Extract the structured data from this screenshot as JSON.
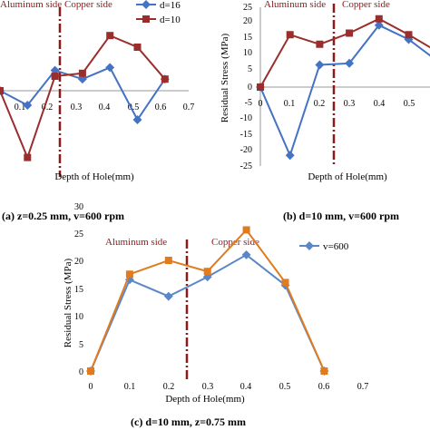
{
  "chart_data": [
    {
      "id": "a",
      "type": "line",
      "caption": "(a) z=0.25 mm, v=600 rpm",
      "xlabel": "Depth of Hole(mm)",
      "ylabel": "",
      "x_ticks": [
        "0.1",
        "0.2",
        "0.3",
        "0.4",
        "0.5",
        "0.6",
        "0.7"
      ],
      "y_ticks": [],
      "xlim": [
        0,
        0.7
      ],
      "ylim": [
        -25,
        25
      ],
      "annotations": {
        "left": "Aluminum side",
        "right": "Copper side"
      },
      "divider_x": 0.25,
      "legend": "top-right",
      "x": [
        0,
        0.1,
        0.2,
        0.3,
        0.4,
        0.5,
        0.6
      ],
      "series": [
        {
          "name": "d=16",
          "color": "#4472c4",
          "marker": "diamond",
          "values": [
            0,
            -5,
            7,
            4,
            8,
            -10,
            4
          ]
        },
        {
          "name": "d=10",
          "color": "#9b2d2d",
          "marker": "square",
          "values": [
            0,
            -23,
            5,
            6,
            19,
            15,
            4
          ]
        }
      ]
    },
    {
      "id": "b",
      "type": "line",
      "caption": "(b) d=10 mm, v=600 rpm",
      "xlabel": "Depth of Hole(mm)",
      "ylabel": "Residual Stress (MPa)",
      "x_ticks": [
        "0",
        "0.1",
        "0.2",
        "0.3",
        "0.4",
        "0.5"
      ],
      "y_ticks": [
        "25",
        "20",
        "15",
        "10",
        "5",
        "0",
        "-5",
        "-10",
        "-15",
        "-20",
        "-25"
      ],
      "xlim": [
        0,
        0.6
      ],
      "ylim": [
        -25,
        25
      ],
      "annotations": {
        "left": "Aluminum side",
        "right": "Copper side"
      },
      "divider_x": 0.25,
      "legend": "none",
      "x": [
        0,
        0.1,
        0.2,
        0.3,
        0.4,
        0.5,
        0.6
      ],
      "series": [
        {
          "name": "",
          "color": "#4472c4",
          "marker": "diamond",
          "values": [
            0,
            -21.5,
            7,
            7.5,
            19.5,
            15,
            8
          ]
        },
        {
          "name": "",
          "color": "#9b2d2d",
          "marker": "square",
          "values": [
            0,
            16.5,
            13.5,
            17,
            21.5,
            16.5,
            11
          ]
        }
      ]
    },
    {
      "id": "c",
      "type": "line",
      "caption": "(c) d=10 mm, z=0.75 mm",
      "xlabel": "Depth of Hole(mm)",
      "ylabel": "Residual Stress (MPa)",
      "x_ticks": [
        "0",
        "0.1",
        "0.2",
        "0.3",
        "0.4",
        "0.5",
        "0.6",
        "0.7"
      ],
      "y_ticks": [
        "0",
        "5",
        "10",
        "15",
        "20",
        "25",
        "30"
      ],
      "xlim": [
        0,
        0.7
      ],
      "ylim": [
        0,
        30
      ],
      "annotations": {
        "left": "Aluminum side",
        "right": "Copper side"
      },
      "divider_x": 0.25,
      "legend": "top-right",
      "x": [
        0,
        0.1,
        0.2,
        0.3,
        0.4,
        0.5,
        0.6
      ],
      "series": [
        {
          "name": "v=600",
          "color": "#5b87c9",
          "marker": "diamond",
          "values": [
            0,
            16.5,
            13.5,
            17,
            21,
            15.5,
            0
          ]
        },
        {
          "name": "",
          "color": "#e07b1f",
          "marker": "square",
          "values": [
            0,
            17.5,
            20,
            18,
            25.5,
            16,
            0
          ]
        }
      ]
    }
  ]
}
